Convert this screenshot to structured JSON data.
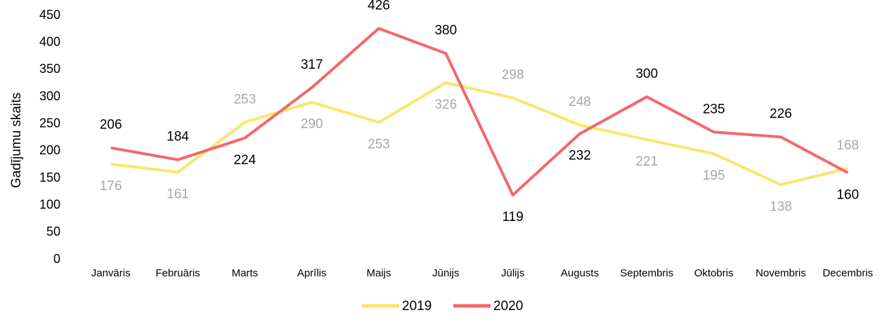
{
  "chart_data": {
    "type": "line",
    "y_label": "Gadījumu skaits",
    "categories": [
      "Janvāris",
      "Februāris",
      "Marts",
      "Aprīlis",
      "Maijs",
      "Jūnijs",
      "Jūlijs",
      "Augusts",
      "Septembris",
      "Oktobris",
      "Novembris",
      "Decembris"
    ],
    "series": [
      {
        "name": "2019",
        "color": "#fbe56c",
        "label_color": "#a6a6a6",
        "values": [
          176,
          161,
          253,
          290,
          253,
          326,
          298,
          248,
          221,
          195,
          138,
          168
        ]
      },
      {
        "name": "2020",
        "color": "#f4676a",
        "label_color": "#000000",
        "values": [
          206,
          184,
          224,
          317,
          426,
          380,
          119,
          232,
          300,
          235,
          226,
          160
        ]
      }
    ],
    "ylim": [
      0,
      450
    ],
    "yticks": [
      0,
      50,
      100,
      150,
      200,
      250,
      300,
      350,
      400,
      450
    ],
    "grid": false,
    "legend": "bottom"
  }
}
